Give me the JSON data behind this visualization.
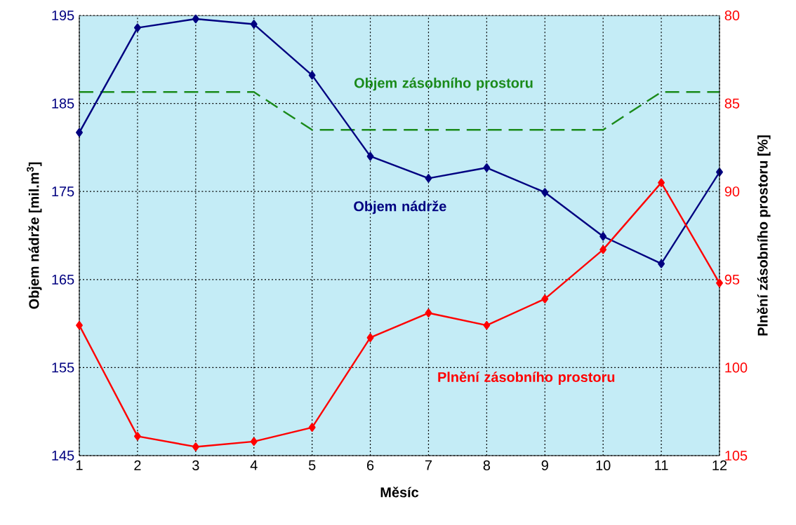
{
  "chart_data": {
    "type": "line",
    "xlabel": "Měsíc",
    "ylabel": "Objem nádrže [mil.m$^{3}$]",
    "y2label": "Plnění zásobního prostoru [%]",
    "x": [
      1,
      2,
      3,
      4,
      5,
      6,
      7,
      8,
      9,
      10,
      11,
      12
    ],
    "xlim": [
      1,
      12
    ],
    "xticks": [
      1,
      2,
      3,
      4,
      5,
      6,
      7,
      8,
      9,
      10,
      11,
      12
    ],
    "ylim": [
      145,
      195
    ],
    "yticks": [
      145,
      155,
      165,
      175,
      185,
      195
    ],
    "y2lim": [
      105,
      80
    ],
    "y2ticks": [
      80,
      85,
      90,
      95,
      100,
      105
    ],
    "grid": true,
    "series": [
      {
        "name": "Objem zásobního prostoru",
        "color": "#1a8a1a",
        "marker": "none",
        "line_style": "dashed",
        "values": [
          186.3,
          186.3,
          186.3,
          186.3,
          182.0,
          182.0,
          182.0,
          182.0,
          182.0,
          182.0,
          186.3,
          186.3
        ]
      },
      {
        "name": "Objem nádrže",
        "color": "#000080",
        "marker": "diamond",
        "line_style": "solid",
        "values": [
          181.7,
          193.6,
          194.6,
          194.0,
          188.2,
          179.0,
          176.5,
          177.7,
          174.9,
          169.9,
          166.8,
          177.2
        ]
      },
      {
        "name": "Plnění zásobního prostoru",
        "color": "#ff0000",
        "marker": "diamond",
        "line_style": "solid",
        "axis": "y2",
        "values": [
          97.6,
          103.9,
          104.5,
          104.2,
          103.4,
          98.3,
          96.9,
          97.6,
          96.1,
          93.3,
          89.5,
          95.2
        ]
      }
    ]
  }
}
